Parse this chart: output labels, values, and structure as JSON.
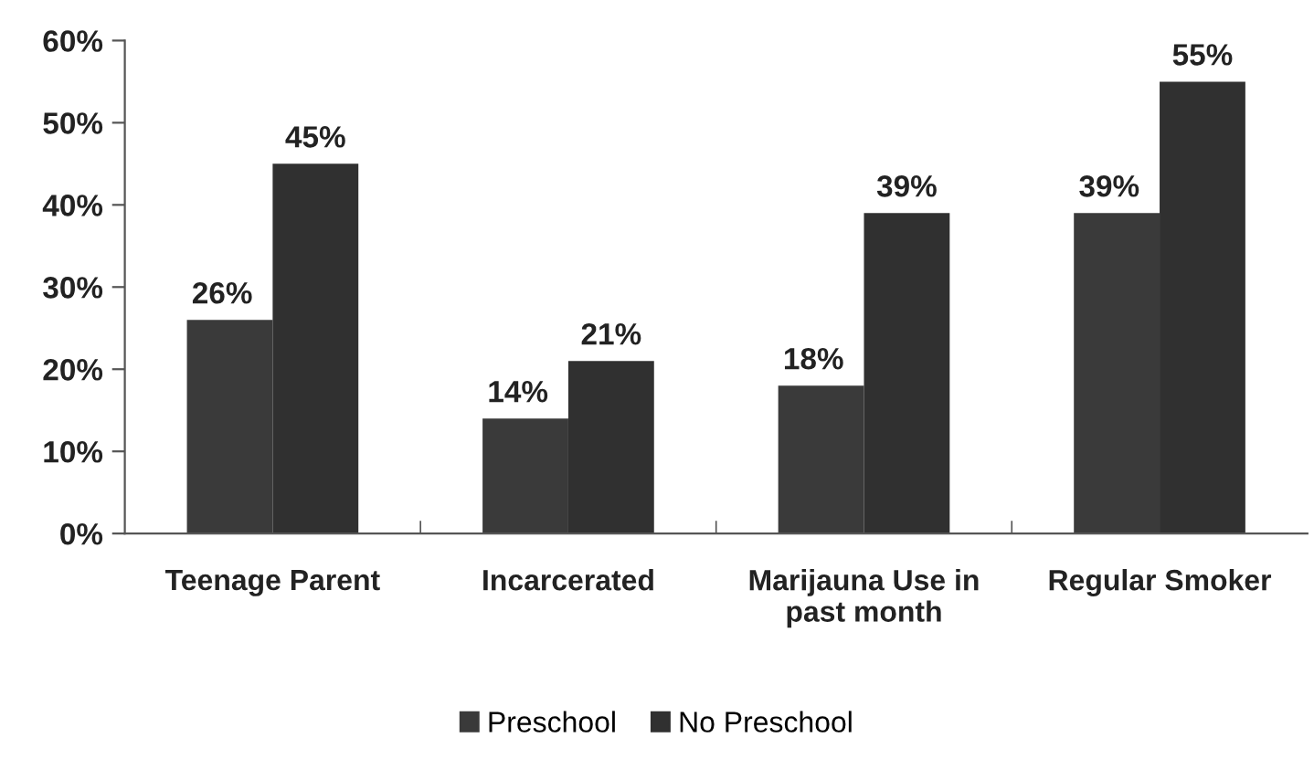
{
  "chart_data": {
    "type": "bar",
    "categories": [
      "Teenage Parent",
      "Incarcerated",
      "Marijauna Use in\npast month",
      "Regular Smoker"
    ],
    "series": [
      {
        "name": "Preschool",
        "color": "#3a3a3a",
        "values": [
          26,
          14,
          18,
          39
        ],
        "value_labels": [
          "26%",
          "14%",
          "18%",
          "39%"
        ]
      },
      {
        "name": "No Preschool",
        "color": "#303030",
        "values": [
          45,
          21,
          39,
          55
        ],
        "value_labels": [
          "45%",
          "21%",
          "39%",
          "55%"
        ]
      }
    ],
    "ylim": [
      0,
      60
    ],
    "yticks": [
      {
        "value": 0,
        "label": "0%"
      },
      {
        "value": 10,
        "label": "10%"
      },
      {
        "value": 20,
        "label": "20%"
      },
      {
        "value": 30,
        "label": "30%"
      },
      {
        "value": 40,
        "label": "40%"
      },
      {
        "value": 50,
        "label": "50%"
      },
      {
        "value": 60,
        "label": "60%"
      }
    ],
    "grid": false,
    "legend": "bottom"
  }
}
